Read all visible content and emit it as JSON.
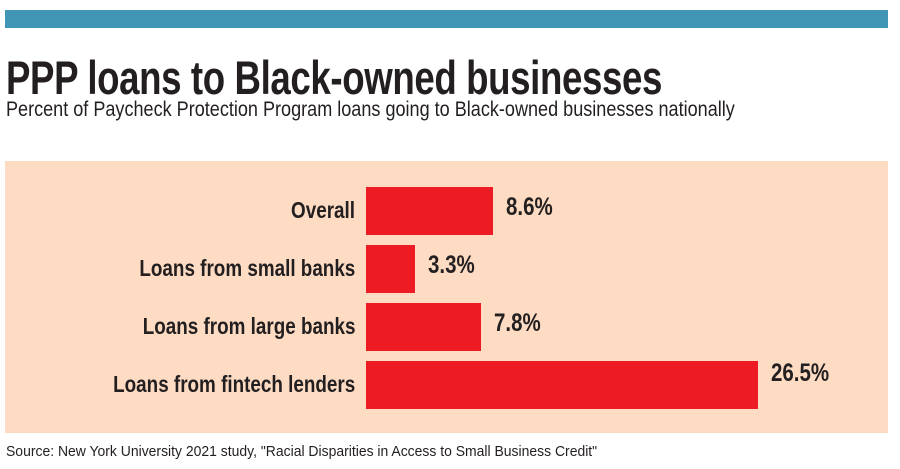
{
  "chart_data": {
    "type": "bar",
    "orientation": "horizontal",
    "title": "PPP loans to Black-owned businesses",
    "subtitle": "Percent of Paycheck Protection Program loans going to Black-owned businesses nationally",
    "categories": [
      "Overall",
      "Loans from small banks",
      "Loans from large banks",
      "Loans from fintech lenders"
    ],
    "values": [
      8.6,
      3.3,
      7.8,
      26.5
    ],
    "value_labels": [
      "8.6%",
      "3.3%",
      "7.8%",
      "26.5%"
    ],
    "xlabel": "",
    "ylabel": "",
    "xlim": [
      0,
      26.5
    ],
    "grid": false,
    "source": "Source: New York University 2021 study, \"Racial Disparities in Access to Small Business Credit\""
  },
  "colors": {
    "accent_bar": "#4096b4",
    "bar": "#ed1c24",
    "panel": "#fddcc3"
  }
}
